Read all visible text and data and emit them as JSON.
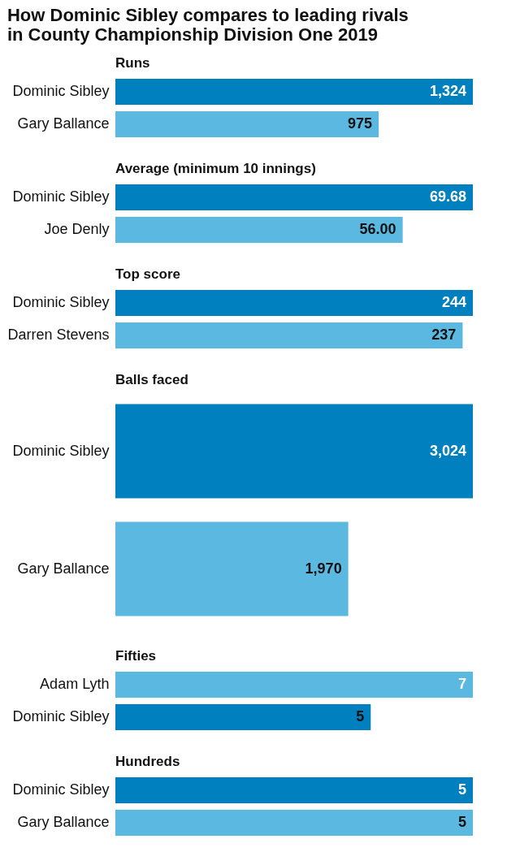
{
  "chart_data": [
    {
      "type": "bar",
      "orientation": "horizontal",
      "title": "How Dominic Sibley compares to leading rivals in County Championship Division One 2019",
      "subtitle": "Runs",
      "categories": [
        "Dominic Sibley",
        "Gary Ballance"
      ],
      "values": [
        1324,
        975
      ],
      "value_labels": [
        "1,324",
        "975"
      ],
      "colors": [
        "#0080bf",
        "#5bb8e0"
      ],
      "xlim": [
        0,
        1324
      ],
      "tick_labels": "y"
    },
    {
      "type": "bar",
      "orientation": "horizontal",
      "title": "Average (minimum 10 innings)",
      "categories": [
        "Dominic Sibley",
        "Joe Denly"
      ],
      "values": [
        69.68,
        56.0
      ],
      "value_labels": [
        "69.68",
        "56.00"
      ],
      "colors": [
        "#0080bf",
        "#5bb8e0"
      ],
      "tick_labels": "y"
    },
    {
      "type": "bar",
      "orientation": "horizontal",
      "title": "Top score",
      "categories": [
        "Dominic Sibley",
        "Darren Stevens"
      ],
      "values": [
        244,
        237
      ],
      "value_labels": [
        "244",
        "237"
      ],
      "colors": [
        "#0080bf",
        "#5bb8e0"
      ],
      "tick_labels": "y"
    },
    {
      "type": "bar",
      "orientation": "horizontal",
      "title": "Balls faced",
      "categories": [
        "Dominic Sibley",
        "Gary Ballance"
      ],
      "values": [
        3024,
        1970
      ],
      "value_labels": [
        "3,024",
        "1,970"
      ],
      "colors": [
        "#0080bf",
        "#5bb8e0"
      ],
      "xlim": [
        0,
        3024
      ],
      "tick_labels": "y"
    },
    {
      "type": "bar",
      "orientation": "horizontal",
      "title": "Fifties",
      "categories": [
        "Adam Lyth",
        "Dominic Sibley"
      ],
      "values": [
        7,
        5
      ],
      "value_labels": [
        "7",
        "5"
      ],
      "colors": [
        "#5bb8e0",
        "#0080bf"
      ],
      "tick_labels": "y"
    },
    {
      "type": "bar",
      "orientation": "horizontal",
      "title": "Hundreds",
      "categories": [
        "Dominic Sibley",
        "Gary Ballance"
      ],
      "values": [
        5,
        5
      ],
      "value_labels": [
        "5",
        "5"
      ],
      "colors": [
        "#0080bf",
        "#5bb8e0"
      ],
      "tick_labels": "y"
    }
  ]
}
